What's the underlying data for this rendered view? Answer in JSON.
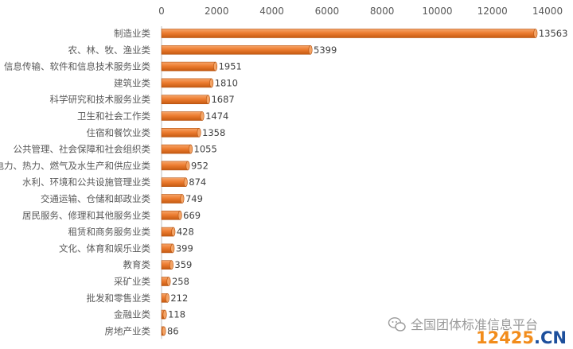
{
  "chart_data": {
    "type": "bar",
    "orientation": "horizontal",
    "categories": [
      "制造业类",
      "农、林、牧、渔业类",
      "信息传输、软件和信息技术服务业类",
      "建筑业类",
      "科学研究和技术服务业类",
      "卫生和社会工作类",
      "住宿和餐饮业类",
      "公共管理、社会保障和社会组织类",
      "电力、热力、燃气及水生产和供应业类",
      "水利、环境和公共设施管理业类",
      "交通运输、仓储和邮政业类",
      "居民服务、修理和其他服务业类",
      "租赁和商务服务业类",
      "文化、体育和娱乐业类",
      "教育类",
      "采矿业类",
      "批发和零售业类",
      "金融业类",
      "房地产业类"
    ],
    "values": [
      13563,
      5399,
      1951,
      1810,
      1687,
      1474,
      1358,
      1055,
      952,
      874,
      749,
      669,
      428,
      399,
      359,
      258,
      212,
      118,
      86
    ],
    "title": "",
    "xlabel": "",
    "ylabel": "",
    "xlim": [
      0,
      14000
    ],
    "xticks": [
      0,
      2000,
      4000,
      6000,
      8000,
      10000,
      12000,
      14000
    ],
    "axis_position": "top",
    "grid": false,
    "legend": "none",
    "bar_color": "#ed7d31"
  },
  "watermark": {
    "account_icon": "wechat-icon",
    "text": "全国团体标准信息平台"
  },
  "site_logo": {
    "number": "12425",
    "domain": ".CN"
  }
}
